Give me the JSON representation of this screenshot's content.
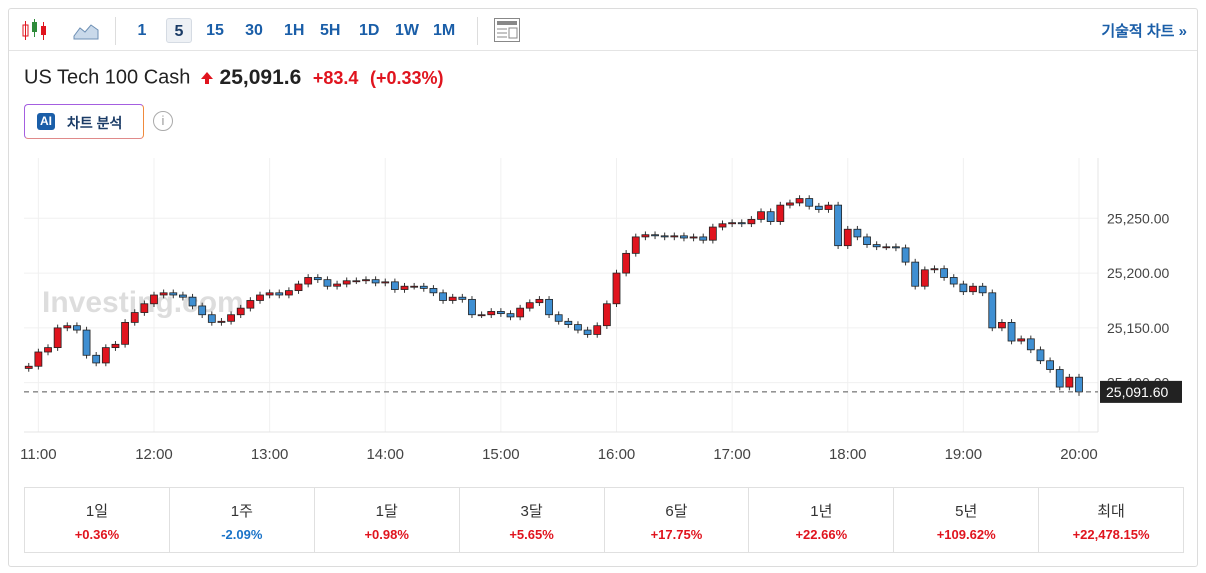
{
  "toolbar": {
    "intervals": [
      "1",
      "5",
      "15",
      "30",
      "1H",
      "5H",
      "1D",
      "1W",
      "1M"
    ],
    "active": "5",
    "link": "기술적 차트 »"
  },
  "header": {
    "symbol": "US Tech 100 Cash",
    "price": "25,091.6",
    "change": "+83.4",
    "change_pct": "(+0.33%)",
    "ai_badge": "AI",
    "ai_button": "차트 분석",
    "info": "i"
  },
  "chart_data": {
    "type": "candlestick",
    "watermark": "Investing.com",
    "x": [
      "10:55",
      "11:00",
      "11:05",
      "11:10",
      "11:15",
      "11:20",
      "11:25",
      "11:30",
      "11:35",
      "11:40",
      "11:45",
      "11:50",
      "11:55",
      "12:00",
      "12:05",
      "12:10",
      "12:15",
      "12:20",
      "12:25",
      "12:30",
      "12:35",
      "12:40",
      "12:45",
      "12:50",
      "12:55",
      "13:00",
      "13:05",
      "13:10",
      "13:15",
      "13:20",
      "13:25",
      "13:30",
      "13:35",
      "13:40",
      "13:45",
      "13:50",
      "13:55",
      "14:00",
      "14:05",
      "14:10",
      "14:15",
      "14:20",
      "14:25",
      "14:30",
      "14:35",
      "14:40",
      "14:45",
      "14:50",
      "14:55",
      "15:00",
      "15:05",
      "15:10",
      "15:15",
      "15:20",
      "15:25",
      "15:30",
      "15:35",
      "15:40",
      "15:45",
      "15:50",
      "15:55",
      "16:00",
      "16:05",
      "16:10",
      "16:15",
      "16:20",
      "16:25",
      "16:30",
      "16:35",
      "16:40",
      "16:45",
      "16:50",
      "16:55",
      "17:00",
      "17:05",
      "17:10",
      "17:15",
      "17:20",
      "17:25",
      "17:30",
      "17:35",
      "17:40",
      "17:45",
      "17:50",
      "17:55",
      "18:00",
      "18:05",
      "18:10",
      "18:15",
      "18:20",
      "18:25",
      "18:30",
      "18:35",
      "18:40",
      "18:45",
      "18:50",
      "18:55",
      "19:00",
      "19:05",
      "19:10",
      "19:15",
      "19:20",
      "19:25",
      "19:30",
      "19:35",
      "19:40",
      "19:45",
      "19:50",
      "19:55",
      "20:00"
    ],
    "open": [
      25113,
      25115,
      25128,
      25132,
      25150,
      25152,
      25148,
      25125,
      25118,
      25132,
      25135,
      25155,
      25164,
      25172,
      25180,
      25182,
      25180,
      25178,
      25170,
      25162,
      25155,
      25156,
      25162,
      25168,
      25175,
      25180,
      25182,
      25180,
      25184,
      25190,
      25196,
      25194,
      25188,
      25190,
      25193,
      25193,
      25194,
      25191,
      25192,
      25185,
      25188,
      25188,
      25186,
      25182,
      25175,
      25178,
      25176,
      25162,
      25162,
      25165,
      25163,
      25160,
      25168,
      25173,
      25176,
      25162,
      25156,
      25153,
      25148,
      25144,
      25152,
      25172,
      25200,
      25218,
      25233,
      25235,
      25234,
      25233,
      25234,
      25232,
      25233,
      25230,
      25242,
      25245,
      25246,
      25245,
      25249,
      25256,
      25247,
      25262,
      25264,
      25268,
      25261,
      25258,
      25262,
      25225,
      25240,
      25233,
      25226,
      25224,
      25224,
      25223,
      25210,
      25188,
      25203,
      25204,
      25196,
      25190,
      25183,
      25188,
      25182,
      25150,
      25155,
      25138,
      25140,
      25130,
      25120,
      25112,
      25096,
      25105
    ],
    "high": [
      25118,
      25131,
      25135,
      25153,
      25155,
      25155,
      25151,
      25128,
      25135,
      25138,
      25158,
      25167,
      25175,
      25183,
      25185,
      25185,
      25183,
      25181,
      25173,
      25165,
      25159,
      25165,
      25171,
      25178,
      25183,
      25185,
      25185,
      25187,
      25193,
      25199,
      25199,
      25197,
      25193,
      25196,
      25196,
      25197,
      25197,
      25195,
      25195,
      25191,
      25191,
      25191,
      25189,
      25185,
      25181,
      25181,
      25179,
      25165,
      25168,
      25168,
      25166,
      25171,
      25176,
      25179,
      25179,
      25165,
      25159,
      25156,
      25151,
      25155,
      25175,
      25203,
      25221,
      25236,
      25238,
      25238,
      25237,
      25237,
      25237,
      25236,
      25236,
      25245,
      25248,
      25249,
      25249,
      25252,
      25259,
      25259,
      25265,
      25267,
      25271,
      25271,
      25264,
      25265,
      25265,
      25243,
      25243,
      25236,
      25229,
      25227,
      25227,
      25226,
      25213,
      25206,
      25207,
      25207,
      25199,
      25193,
      25191,
      25191,
      25185,
      25158,
      25158,
      25143,
      25143,
      25133,
      25123,
      25115,
      25108,
      25108
    ],
    "low": [
      25110,
      25112,
      25125,
      25129,
      25147,
      25145,
      25122,
      25115,
      25115,
      25129,
      25132,
      25152,
      25161,
      25169,
      25177,
      25177,
      25175,
      25167,
      25159,
      25152,
      25152,
      25153,
      25159,
      25165,
      25172,
      25177,
      25177,
      25177,
      25181,
      25187,
      25191,
      25185,
      25185,
      25187,
      25190,
      25190,
      25188,
      25188,
      25182,
      25182,
      25185,
      25183,
      25179,
      25172,
      25172,
      25173,
      25159,
      25159,
      25159,
      25160,
      25157,
      25157,
      25165,
      25170,
      25159,
      25153,
      25150,
      25145,
      25141,
      25141,
      25149,
      25169,
      25197,
      25215,
      25230,
      25231,
      25230,
      25230,
      25229,
      25229,
      25227,
      25227,
      25239,
      25242,
      25242,
      25242,
      25246,
      25244,
      25244,
      25259,
      25261,
      25258,
      25255,
      25255,
      25222,
      25222,
      25230,
      25223,
      25221,
      25221,
      25220,
      25207,
      25185,
      25185,
      25200,
      25193,
      25187,
      25180,
      25180,
      25179,
      25147,
      25147,
      25135,
      25135,
      25127,
      25117,
      25109,
      25093,
      25093,
      25088
    ],
    "close": [
      25115,
      25128,
      25132,
      25150,
      25152,
      25148,
      25125,
      25118,
      25132,
      25135,
      25155,
      25164,
      25172,
      25180,
      25182,
      25180,
      25178,
      25170,
      25162,
      25155,
      25156,
      25162,
      25168,
      25175,
      25180,
      25182,
      25180,
      25184,
      25190,
      25196,
      25194,
      25188,
      25190,
      25193,
      25193,
      25194,
      25191,
      25192,
      25185,
      25188,
      25188,
      25186,
      25182,
      25175,
      25178,
      25176,
      25162,
      25162,
      25165,
      25163,
      25160,
      25168,
      25173,
      25176,
      25162,
      25156,
      25153,
      25148,
      25144,
      25152,
      25172,
      25200,
      25218,
      25233,
      25235,
      25234,
      25233,
      25234,
      25232,
      25233,
      25230,
      25242,
      25245,
      25246,
      25245,
      25249,
      25256,
      25247,
      25262,
      25264,
      25268,
      25261,
      25258,
      25262,
      25225,
      25240,
      25233,
      25226,
      25224,
      25224,
      25223,
      25210,
      25188,
      25203,
      25204,
      25196,
      25190,
      25183,
      25188,
      25182,
      25150,
      25155,
      25138,
      25140,
      25130,
      25120,
      25112,
      25096,
      25105,
      25091.6
    ],
    "up_color": "#e0141e",
    "down_color": "#3f8fd2",
    "xticks": [
      "11:00",
      "12:00",
      "13:00",
      "14:00",
      "15:00",
      "16:00",
      "17:00",
      "18:00",
      "19:00",
      "20:00"
    ],
    "ylim": [
      25055,
      25305
    ],
    "yticks": [
      {
        "value": 25100,
        "label": "25,100.00"
      },
      {
        "value": 25150,
        "label": "25,150.00"
      },
      {
        "value": 25200,
        "label": "25,200.00"
      },
      {
        "value": 25250,
        "label": "25,250.00"
      }
    ],
    "grid": true,
    "price_line": {
      "value": 25091.6,
      "label": "25,091.60"
    }
  },
  "performance": [
    {
      "period": "1일",
      "change": "+0.36%"
    },
    {
      "period": "1주",
      "change": "-2.09%"
    },
    {
      "period": "1달",
      "change": "+0.98%"
    },
    {
      "period": "3달",
      "change": "+5.65%"
    },
    {
      "period": "6달",
      "change": "+17.75%"
    },
    {
      "period": "1년",
      "change": "+22.66%"
    },
    {
      "period": "5년",
      "change": "+109.62%"
    },
    {
      "period": "최대",
      "change": "+22,478.15%"
    }
  ]
}
